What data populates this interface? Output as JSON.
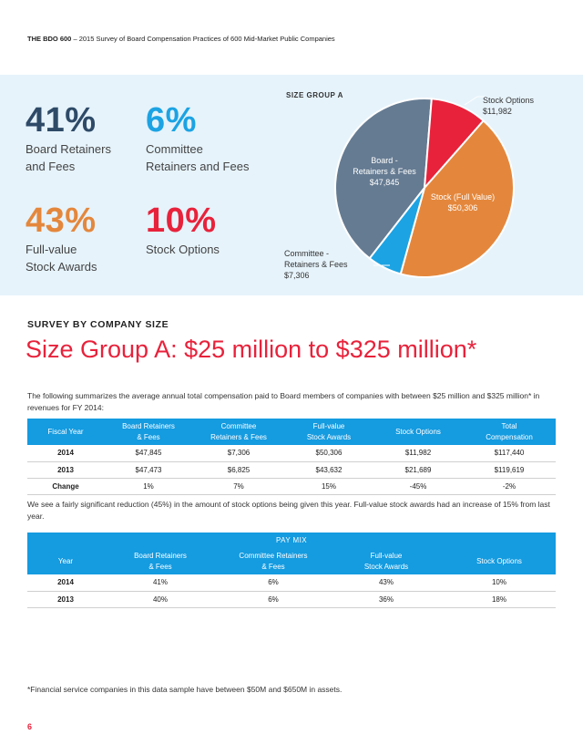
{
  "header": {
    "bold": "THE BDO 600",
    "rest": " – 2015 Survey of Board Compensation Practices of 600 Mid-Market Public Companies"
  },
  "colors": {
    "gray": "#657b92",
    "red": "#e8223b",
    "orange": "#e4873c",
    "blue": "#1ca3e3",
    "navy": "#2e4a67"
  },
  "stats": [
    {
      "pct": "41%",
      "line1": "Board Retainers",
      "line2": "and Fees",
      "color": "#2e4a67"
    },
    {
      "pct": "6%",
      "line1": "Committee",
      "line2": "Retainers and Fees",
      "color": "#1ca3e3"
    },
    {
      "pct": "43%",
      "line1": "Full-value",
      "line2": "Stock Awards",
      "color": "#e4873c"
    },
    {
      "pct": "10%",
      "line1": "Stock Options",
      "line2": "",
      "color": "#e8223b"
    }
  ],
  "pie": {
    "title": "SIZE GROUP A",
    "labels": {
      "board": [
        "Board -",
        "Retainers & Fees",
        "$47,845"
      ],
      "options": [
        "Stock Options",
        "$11,982"
      ],
      "stock": [
        "Stock (Full Value)",
        "$50,306"
      ],
      "committee": [
        "Committee -",
        "Retainers & Fees",
        "$7,306"
      ]
    }
  },
  "chart_data": {
    "type": "pie",
    "title": "SIZE GROUP A",
    "slices": [
      {
        "label": "Board - Retainers & Fees",
        "value": 47845,
        "color": "#657b92"
      },
      {
        "label": "Stock Options",
        "value": 11982,
        "color": "#e8223b"
      },
      {
        "label": "Stock (Full Value)",
        "value": 50306,
        "color": "#e4873c"
      },
      {
        "label": "Committee - Retainers & Fees",
        "value": 7306,
        "color": "#1ca3e3"
      }
    ]
  },
  "section": {
    "kicker": "SURVEY BY COMPANY SIZE",
    "title": "Size Group A: $25 million to $325 million*",
    "intro": "The following summarizes the average annual total compensation paid to Board members of companies with between $25 million and $325 million* in revenues for FY 2014:",
    "between": "We see a fairly significant reduction (45%) in the amount of stock options being given this year. Full-value stock awards had an increase of 15% from last year."
  },
  "table1": {
    "headers": [
      [
        "Fiscal Year"
      ],
      [
        "Board Retainers",
        "& Fees"
      ],
      [
        "Committee",
        "Retainers & Fees"
      ],
      [
        "Full-value",
        "Stock Awards"
      ],
      [
        "Stock Options"
      ],
      [
        "Total",
        "Compensation"
      ]
    ],
    "rows": [
      [
        "2014",
        "$47,845",
        "$7,306",
        "$50,306",
        "$11,982",
        "$117,440"
      ],
      [
        "2013",
        "$47,473",
        "$6,825",
        "$43,632",
        "$21,689",
        "$119,619"
      ],
      [
        "Change",
        "1%",
        "7%",
        "15%",
        "-45%",
        "-2%"
      ]
    ]
  },
  "table2": {
    "caption": "PAY MIX",
    "headers": [
      [
        "Year"
      ],
      [
        "Board Retainers",
        "& Fees"
      ],
      [
        "Committee Retainers",
        "& Fees"
      ],
      [
        "Full-value",
        "Stock Awards"
      ],
      [
        "Stock Options"
      ]
    ],
    "rows": [
      [
        "2014",
        "41%",
        "6%",
        "43%",
        "10%"
      ],
      [
        "2013",
        "40%",
        "6%",
        "36%",
        "18%"
      ]
    ]
  },
  "footnote": "*Financial service companies in this data sample have between $50M and $650M in assets.",
  "page_number": "6"
}
